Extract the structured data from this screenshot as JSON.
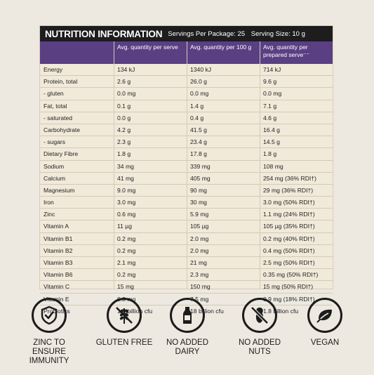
{
  "panel": {
    "title": "NUTRITION INFORMATION",
    "servings_per_package": "Servings Per Package: 25",
    "serving_size": "Serving Size: 10 g",
    "columns": [
      "",
      "Avg. quantity per serve",
      "Avg. quantity per 100 g",
      "Avg. quantity per prepared serve⁻⁻"
    ],
    "rows": [
      [
        "Energy",
        "134 kJ",
        "1340 kJ",
        "714 kJ"
      ],
      [
        "Protein, total",
        "2.6 g",
        "26.0 g",
        "9.6 g"
      ],
      [
        " - gluten",
        "0.0 mg",
        "0.0 mg",
        "0.0 mg"
      ],
      [
        "Fat, total",
        "0.1 g",
        "1.4 g",
        "7.1 g"
      ],
      [
        " - saturated",
        "0.0 g",
        "0.4 g",
        "4.6 g"
      ],
      [
        "Carbohydrate",
        "4.2 g",
        "41.5 g",
        "16.4 g"
      ],
      [
        " - sugars",
        "2.3 g",
        "23.4 g",
        "14.5 g"
      ],
      [
        "Dietary Fibre",
        "1.8 g",
        "17.8 g",
        "1.8 g"
      ],
      [
        "Sodium",
        "34 mg",
        "339 mg",
        "108 mg"
      ],
      [
        "Calcium",
        "41 mg",
        "405 mg",
        "254 mg (36% RDI†)"
      ],
      [
        "Magnesium",
        "9.0 mg",
        "90 mg",
        "29 mg (36% RDI†)"
      ],
      [
        "Iron",
        "3.0 mg",
        "30 mg",
        "3.0 mg (50% RDI†)"
      ],
      [
        "Zinc",
        "0.6 mg",
        "5.9 mg",
        "1.1 mg (24% RDI†)"
      ],
      [
        "Vitamin A",
        "11 µg",
        "105 µg",
        "105 µg (35% RDI†)"
      ],
      [
        "Vitamin B1",
        "0.2 mg",
        "2.0 mg",
        "0.2 mg (40% RDI†)"
      ],
      [
        "Vitamin B2",
        "0.2 mg",
        "2.0 mg",
        "0.4 mg (50% RDI†)"
      ],
      [
        "Vitamin B3",
        "2.1 mg",
        "21 mg",
        "2.5 mg (50% RDI†)"
      ],
      [
        "Vitamin B6",
        "0.2 mg",
        "2.3 mg",
        "0.35 mg (50% RDI†)"
      ],
      [
        "Vitamin C",
        "15 mg",
        "150 mg",
        "15 mg (50% RDI†)"
      ],
      [
        "Vitamin E",
        "0.8 mg",
        "7.5 mg",
        "0.9 mg (18% RDI†)"
      ],
      [
        "Probiotics",
        "1.8 billion cfu",
        "18 billion cfu",
        "1.8 billion cfu"
      ]
    ]
  },
  "badges": [
    {
      "icon": "shield-check-icon",
      "label": "ZINC TO ENSURE IMMUNITY"
    },
    {
      "icon": "wheat-crossed-icon",
      "label": "GLUTEN FREE"
    },
    {
      "icon": "milk-bottle-icon",
      "label": "NO ADDED DAIRY"
    },
    {
      "icon": "peanut-crossed-icon",
      "label": "NO ADDED NUTS"
    },
    {
      "icon": "leaf-icon",
      "label": "VEGAN"
    }
  ],
  "colors": {
    "background": "#ede9e1",
    "panel": "#f1e9d9",
    "title_bar": "#1d1d1d",
    "header_bar": "#5a3f83",
    "icon_stroke": "#1c1c1c"
  }
}
